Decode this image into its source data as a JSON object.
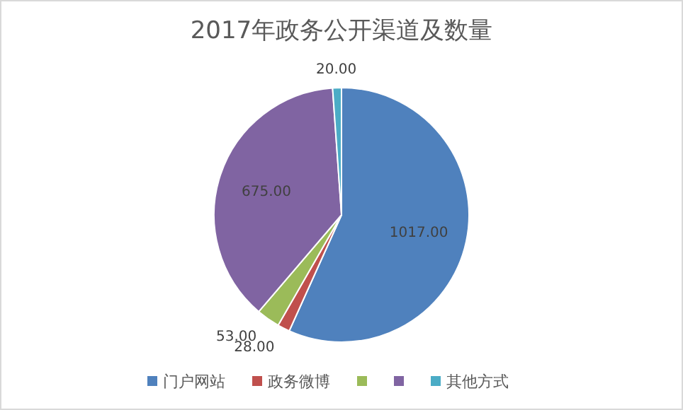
{
  "chart_data": {
    "type": "pie",
    "title": "2017年政务公开渠道及数量",
    "categories": [
      "门户网站",
      "政务微博",
      null,
      null,
      "其他方式"
    ],
    "values": [
      1017,
      28,
      53,
      675,
      20
    ],
    "colors": [
      "#4f81bd",
      "#c0504d",
      "#9bbb59",
      "#8064a2",
      "#4bacc6"
    ],
    "value_labels": [
      "1017.00",
      "28.00",
      "53.00",
      "675.00",
      "20.00"
    ],
    "legend": "bottom"
  }
}
